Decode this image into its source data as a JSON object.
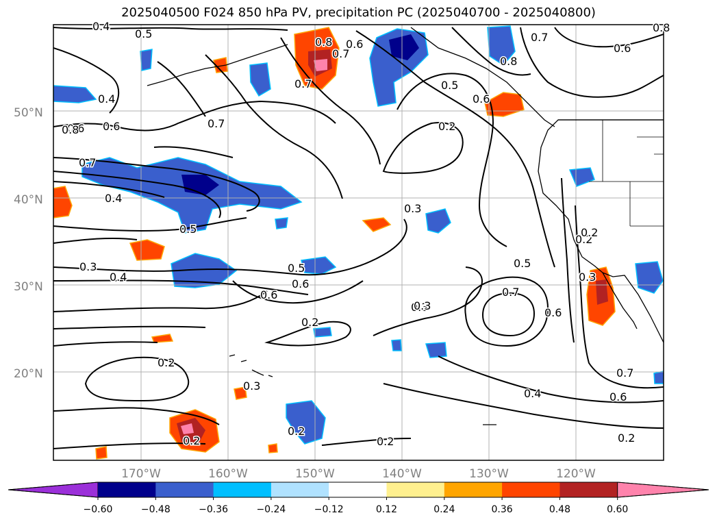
{
  "title": "2025040500 F024 850 hPa PV, precipitation PC (2025040700 - 2025040800)",
  "lat_labels": [
    "50°N",
    "40°N",
    "30°N",
    "20°N"
  ],
  "lon_labels": [
    "170°W",
    "160°W",
    "150°W",
    "140°W",
    "130°W",
    "120°W"
  ],
  "colorbar": {
    "colors": [
      "#9b30d9",
      "#00008b",
      "#3a5fcd",
      "#00bfff",
      "#b0e2ff",
      "#ffffff",
      "#fff08f",
      "#ffa500",
      "#ff4500",
      "#b22222",
      "#ff83ac"
    ],
    "tick_labels": [
      "−0.60",
      "−0.48",
      "−0.36",
      "−0.24",
      "−0.12",
      "0.12",
      "0.24",
      "0.36",
      "0.48",
      "0.60"
    ]
  },
  "contour_labels": [
    "0.4",
    "0.5",
    "0.4",
    "0.8",
    "0.6",
    "0.7",
    "0.5",
    "0.4",
    "0.3",
    "0.6",
    "0.4",
    "0.3",
    "0.2",
    "0.2",
    "0.2",
    "0.3",
    "0.2",
    "0.8",
    "0.6",
    "0.7",
    "0.7",
    "0.5",
    "0.6",
    "0.2",
    "0.3",
    "0.3",
    "0.2",
    "0.2",
    "0.7",
    "0.6",
    "0.5",
    "0.8",
    "0.6",
    "0.7",
    "0.5",
    "0.7",
    "0.6",
    "0.4",
    "0.6",
    "0.7",
    "0.2",
    "0.2",
    "0.3",
    "0.6",
    "0.8"
  ]
}
